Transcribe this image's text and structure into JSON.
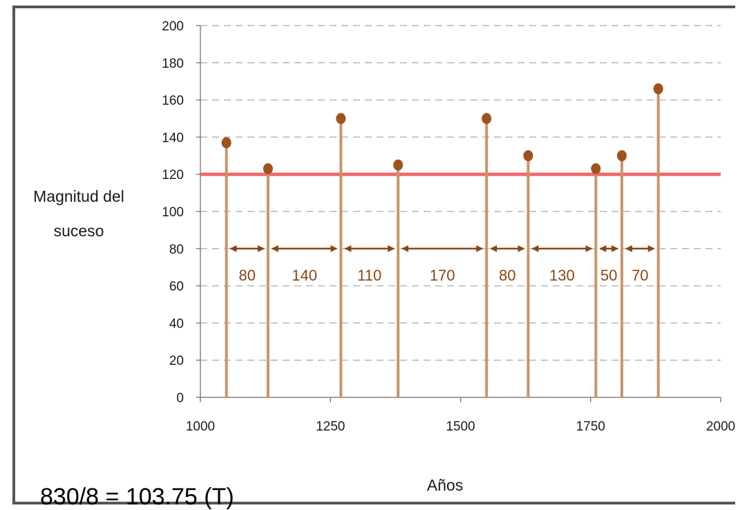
{
  "chart_data": {
    "type": "stem",
    "title": "",
    "xlabel": "Años",
    "ylabel_lines": [
      "Magnitud del",
      "suceso"
    ],
    "xlim": [
      1000,
      2000
    ],
    "ylim": [
      0,
      200
    ],
    "x_ticks": [
      1000,
      1250,
      1500,
      1750,
      2000
    ],
    "y_ticks": [
      0,
      20,
      40,
      60,
      80,
      100,
      120,
      140,
      160,
      180,
      200
    ],
    "grid": "horizontal-dashed",
    "threshold": {
      "y": 120,
      "color": "#f06a6a"
    },
    "events": [
      {
        "x": 1050,
        "y": 137
      },
      {
        "x": 1130,
        "y": 123
      },
      {
        "x": 1270,
        "y": 150
      },
      {
        "x": 1380,
        "y": 125
      },
      {
        "x": 1550,
        "y": 150
      },
      {
        "x": 1630,
        "y": 130
      },
      {
        "x": 1760,
        "y": 123
      },
      {
        "x": 1810,
        "y": 130
      },
      {
        "x": 1880,
        "y": 166
      }
    ],
    "intervals": [
      {
        "from": 1050,
        "to": 1130,
        "label": "80"
      },
      {
        "from": 1130,
        "to": 1270,
        "label": "140"
      },
      {
        "from": 1270,
        "to": 1380,
        "label": "110"
      },
      {
        "from": 1380,
        "to": 1550,
        "label": "170"
      },
      {
        "from": 1550,
        "to": 1630,
        "label": "80"
      },
      {
        "from": 1630,
        "to": 1760,
        "label": "130"
      },
      {
        "from": 1760,
        "to": 1810,
        "label": "50"
      },
      {
        "from": 1810,
        "to": 1880,
        "label": "70"
      }
    ],
    "interval_arrow_y": 80,
    "colors": {
      "stem": "#C8956A",
      "marker": "#A0521E",
      "arrow": "#8B4513",
      "grid": "#b5b5b5",
      "axis": "#808080"
    }
  },
  "footnote": "830/8 = 103.75 (T)"
}
